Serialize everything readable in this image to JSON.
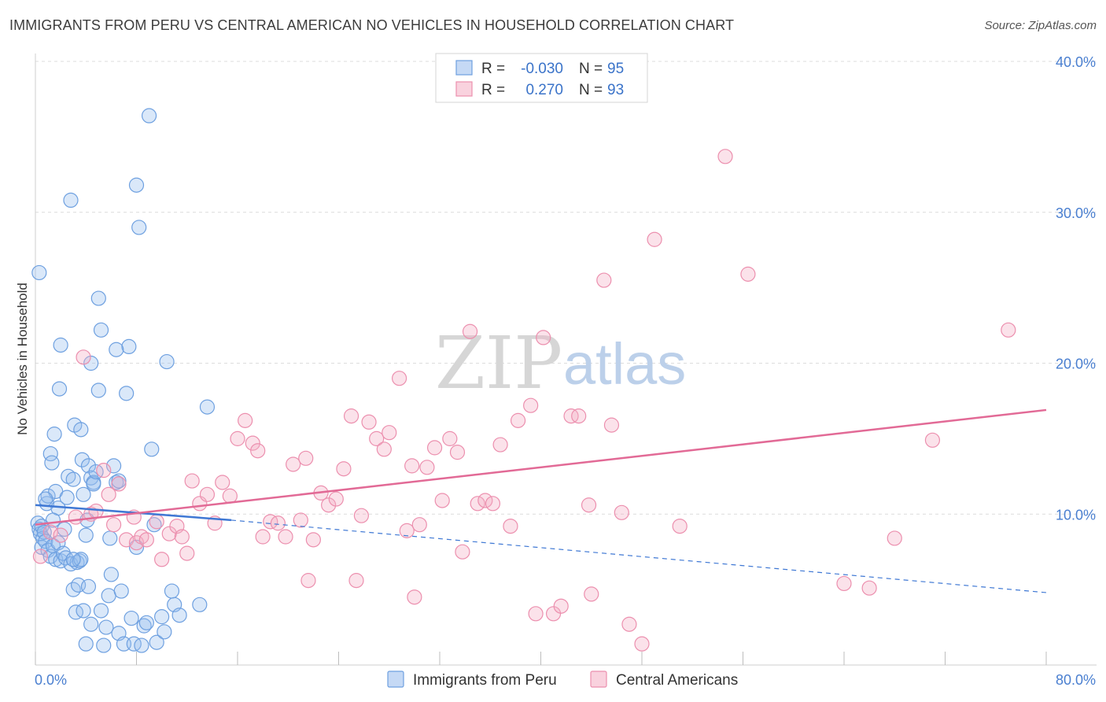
{
  "header": {
    "title": "IMMIGRANTS FROM PERU VS CENTRAL AMERICAN NO VEHICLES IN HOUSEHOLD CORRELATION CHART",
    "source": "Source: ZipAtlas.com"
  },
  "watermark": {
    "zip": "ZIP",
    "atlas": "atlas"
  },
  "legend_box": {
    "rows": [
      {
        "r_label": "R =",
        "r_value": "-0.030",
        "n_label": "N =",
        "n_value": "95",
        "color": "#6ea0e0"
      },
      {
        "r_label": "R =",
        "r_value": "0.270",
        "n_label": "N =",
        "n_value": "93",
        "color": "#ec8fae"
      }
    ]
  },
  "chart_data": {
    "type": "scatter",
    "title": "IMMIGRANTS FROM PERU VS CENTRAL AMERICAN NO VEHICLES IN HOUSEHOLD CORRELATION CHART",
    "xlabel": "",
    "ylabel": "No Vehicles in Household",
    "xlim": [
      0,
      80
    ],
    "ylim": [
      0,
      40
    ],
    "x_tick_labels": [
      "0.0%",
      "80.0%"
    ],
    "y_ticks": [
      10,
      20,
      30,
      40
    ],
    "y_tick_labels": [
      "10.0%",
      "20.0%",
      "30.0%",
      "40.0%"
    ],
    "grid": true,
    "legend_position": "bottom",
    "series": [
      {
        "name": "Immigrants from Peru",
        "color": "#6ea0e0",
        "r": -0.03,
        "n": 95,
        "trend": {
          "x0": 0,
          "y0": 10.6,
          "x1": 15.5,
          "y1": 9.6,
          "dashed_to_x": 80,
          "dashed_to_y": 4.8
        },
        "points": [
          [
            0.2,
            9.4
          ],
          [
            0.3,
            9.0
          ],
          [
            0.4,
            8.7
          ],
          [
            0.5,
            9.2
          ],
          [
            0.6,
            8.4
          ],
          [
            0.7,
            8.8
          ],
          [
            0.5,
            7.8
          ],
          [
            0.8,
            8.2
          ],
          [
            0.3,
            26.0
          ],
          [
            0.9,
            10.7
          ],
          [
            1.0,
            11.2
          ],
          [
            1.2,
            14.0
          ],
          [
            1.3,
            13.4
          ],
          [
            1.5,
            15.3
          ],
          [
            1.6,
            11.5
          ],
          [
            1.8,
            10.4
          ],
          [
            1.0,
            7.6
          ],
          [
            1.2,
            7.2
          ],
          [
            1.4,
            7.9
          ],
          [
            1.6,
            7.0
          ],
          [
            1.8,
            8.1
          ],
          [
            2.0,
            6.9
          ],
          [
            2.2,
            7.4
          ],
          [
            2.4,
            7.1
          ],
          [
            1.9,
            18.3
          ],
          [
            2.3,
            9.0
          ],
          [
            2.6,
            12.5
          ],
          [
            2.8,
            6.7
          ],
          [
            3.0,
            12.3
          ],
          [
            3.1,
            15.9
          ],
          [
            3.3,
            6.8
          ],
          [
            3.5,
            6.9
          ],
          [
            3.6,
            15.6
          ],
          [
            3.7,
            13.6
          ],
          [
            3.8,
            11.3
          ],
          [
            4.0,
            8.6
          ],
          [
            4.1,
            9.6
          ],
          [
            4.2,
            13.2
          ],
          [
            4.4,
            12.4
          ],
          [
            4.6,
            12.1
          ],
          [
            2.8,
            30.8
          ],
          [
            3.0,
            5.0
          ],
          [
            3.2,
            3.5
          ],
          [
            3.4,
            5.3
          ],
          [
            3.6,
            7.0
          ],
          [
            3.8,
            3.6
          ],
          [
            4.0,
            1.4
          ],
          [
            4.2,
            5.2
          ],
          [
            4.4,
            2.7
          ],
          [
            4.6,
            12.0
          ],
          [
            4.8,
            12.8
          ],
          [
            5.0,
            24.3
          ],
          [
            5.2,
            22.2
          ],
          [
            5.0,
            18.2
          ],
          [
            5.2,
            3.6
          ],
          [
            5.4,
            1.3
          ],
          [
            5.6,
            2.5
          ],
          [
            5.8,
            4.6
          ],
          [
            6.0,
            6.0
          ],
          [
            6.2,
            13.2
          ],
          [
            6.4,
            12.1
          ],
          [
            5.9,
            8.4
          ],
          [
            6.6,
            2.1
          ],
          [
            6.8,
            4.9
          ],
          [
            7.0,
            1.4
          ],
          [
            7.2,
            18.0
          ],
          [
            7.4,
            21.1
          ],
          [
            7.6,
            3.1
          ],
          [
            7.8,
            1.4
          ],
          [
            8.0,
            31.8
          ],
          [
            8.2,
            29.0
          ],
          [
            8.4,
            1.3
          ],
          [
            8.6,
            2.6
          ],
          [
            8.8,
            2.8
          ],
          [
            9.0,
            36.4
          ],
          [
            9.2,
            14.3
          ],
          [
            9.4,
            9.3
          ],
          [
            9.6,
            1.5
          ],
          [
            10.0,
            3.2
          ],
          [
            10.2,
            2.2
          ],
          [
            10.4,
            20.1
          ],
          [
            10.8,
            4.9
          ],
          [
            11.0,
            4.0
          ],
          [
            11.4,
            3.3
          ],
          [
            13.0,
            4.0
          ],
          [
            13.6,
            17.1
          ],
          [
            2.0,
            21.2
          ],
          [
            4.4,
            20.0
          ],
          [
            2.5,
            11.1
          ],
          [
            1.4,
            9.6
          ],
          [
            0.8,
            11.0
          ],
          [
            6.4,
            20.9
          ],
          [
            3.0,
            7.0
          ],
          [
            6.6,
            12.2
          ],
          [
            8.0,
            7.8
          ]
        ]
      },
      {
        "name": "Central Americans",
        "color": "#ec8fae",
        "r": 0.27,
        "n": 93,
        "trend": {
          "x0": 0,
          "y0": 9.3,
          "x1": 80,
          "y1": 16.9
        },
        "points": [
          [
            0.4,
            7.2
          ],
          [
            1.2,
            8.8
          ],
          [
            2.0,
            8.6
          ],
          [
            3.2,
            9.8
          ],
          [
            3.8,
            20.4
          ],
          [
            4.4,
            10.0
          ],
          [
            4.8,
            10.2
          ],
          [
            5.4,
            12.9
          ],
          [
            5.8,
            11.3
          ],
          [
            6.2,
            9.3
          ],
          [
            6.6,
            12.0
          ],
          [
            7.2,
            8.3
          ],
          [
            7.8,
            9.8
          ],
          [
            8.0,
            8.1
          ],
          [
            8.4,
            8.5
          ],
          [
            8.8,
            8.3
          ],
          [
            9.6,
            9.5
          ],
          [
            10.0,
            7.0
          ],
          [
            10.6,
            8.7
          ],
          [
            11.2,
            9.2
          ],
          [
            11.6,
            8.5
          ],
          [
            12.0,
            7.4
          ],
          [
            12.4,
            12.2
          ],
          [
            13.0,
            10.7
          ],
          [
            13.6,
            11.3
          ],
          [
            14.2,
            9.4
          ],
          [
            14.8,
            12.1
          ],
          [
            15.4,
            11.2
          ],
          [
            16.0,
            15.0
          ],
          [
            16.6,
            16.2
          ],
          [
            17.2,
            14.7
          ],
          [
            17.6,
            14.2
          ],
          [
            18.0,
            8.5
          ],
          [
            18.6,
            9.5
          ],
          [
            19.2,
            9.4
          ],
          [
            19.8,
            8.5
          ],
          [
            20.4,
            13.3
          ],
          [
            21.0,
            9.6
          ],
          [
            21.4,
            13.7
          ],
          [
            21.6,
            5.6
          ],
          [
            22.0,
            8.3
          ],
          [
            22.6,
            11.4
          ],
          [
            23.2,
            10.6
          ],
          [
            23.8,
            11.0
          ],
          [
            24.4,
            13.0
          ],
          [
            25.0,
            16.5
          ],
          [
            25.4,
            5.6
          ],
          [
            25.8,
            9.9
          ],
          [
            26.4,
            16.1
          ],
          [
            27.0,
            15.0
          ],
          [
            27.6,
            14.3
          ],
          [
            28.0,
            15.4
          ],
          [
            28.8,
            19.0
          ],
          [
            29.4,
            8.9
          ],
          [
            29.8,
            13.2
          ],
          [
            30.4,
            9.3
          ],
          [
            31.0,
            13.1
          ],
          [
            31.6,
            14.4
          ],
          [
            32.2,
            10.9
          ],
          [
            32.8,
            15.0
          ],
          [
            33.4,
            14.1
          ],
          [
            33.8,
            7.5
          ],
          [
            34.4,
            22.1
          ],
          [
            35.0,
            10.7
          ],
          [
            35.6,
            10.9
          ],
          [
            36.2,
            10.7
          ],
          [
            36.8,
            14.6
          ],
          [
            37.6,
            9.2
          ],
          [
            38.2,
            16.2
          ],
          [
            39.2,
            17.2
          ],
          [
            39.6,
            3.4
          ],
          [
            40.2,
            21.7
          ],
          [
            41.0,
            3.4
          ],
          [
            41.6,
            3.9
          ],
          [
            42.4,
            16.5
          ],
          [
            43.0,
            16.5
          ],
          [
            43.8,
            10.6
          ],
          [
            44.0,
            4.7
          ],
          [
            45.0,
            25.5
          ],
          [
            45.6,
            15.9
          ],
          [
            46.4,
            10.1
          ],
          [
            47.0,
            2.7
          ],
          [
            48.0,
            1.4
          ],
          [
            49.0,
            28.2
          ],
          [
            51.0,
            9.2
          ],
          [
            54.6,
            33.7
          ],
          [
            56.4,
            25.9
          ],
          [
            66.0,
            5.1
          ],
          [
            68.0,
            8.4
          ],
          [
            71.0,
            14.9
          ],
          [
            77.0,
            22.2
          ],
          [
            64.0,
            5.4
          ],
          [
            30.0,
            4.5
          ]
        ]
      }
    ]
  },
  "bottom_legend": [
    {
      "label": "Immigrants from Peru",
      "color": "#6ea0e0"
    },
    {
      "label": "Central Americans",
      "color": "#ec8fae"
    }
  ]
}
